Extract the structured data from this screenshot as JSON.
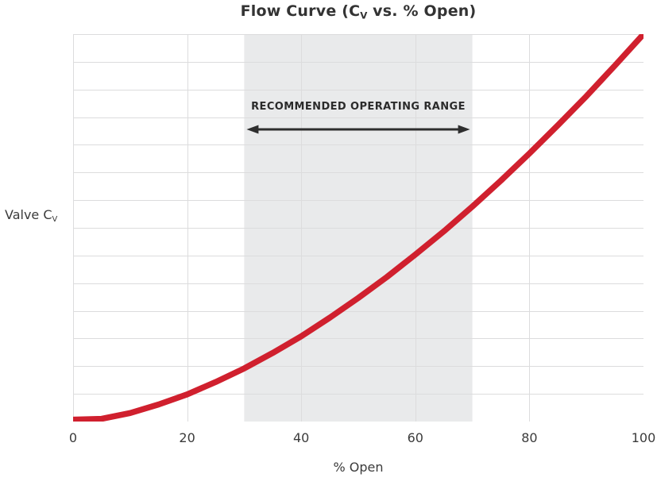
{
  "chart_data": {
    "type": "line",
    "title": {
      "pre": "Flow Curve (C",
      "sub": "V",
      "post": " vs. % Open)"
    },
    "xlabel": "% Open",
    "ylabel": {
      "pre": "Valve C",
      "sub": "V"
    },
    "xlim": [
      0,
      100
    ],
    "ylim": [
      0,
      100
    ],
    "x_ticks": [
      0,
      20,
      40,
      60,
      80,
      100
    ],
    "y_ticks": [],
    "grid": {
      "h_divisions": 14,
      "vertical_at_x_ticks": true
    },
    "legend": "none",
    "band": {
      "label": "RECOMMENDED OPERATING RANGE",
      "from": 30,
      "to": 70
    },
    "series": [
      {
        "name": "Valve Cv flow curve",
        "x": [
          0,
          5,
          10,
          15,
          20,
          25,
          30,
          35,
          40,
          45,
          50,
          55,
          60,
          65,
          70,
          75,
          80,
          85,
          90,
          95,
          100
        ],
        "y": [
          0.5,
          0.7,
          2.2,
          4.4,
          7.0,
          10.2,
          13.7,
          17.7,
          22.0,
          26.8,
          31.9,
          37.3,
          43.1,
          49.1,
          55.5,
          62.2,
          69.2,
          76.5,
          84.0,
          91.9,
          100
        ]
      }
    ],
    "colors": {
      "curve": "#d0202e",
      "band": "#e9eaeb",
      "grid": "#dcdcdd",
      "arrow": "#2e2e2e",
      "title_text": "#333333",
      "axis_text": "#3b3b3b"
    }
  }
}
